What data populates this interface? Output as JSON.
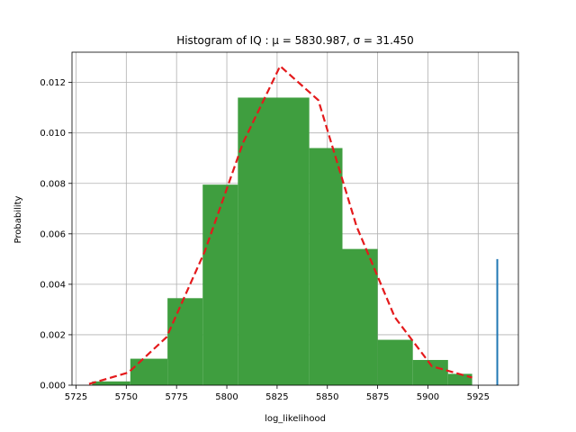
{
  "chart_data": {
    "type": "bar",
    "title": "Histogram of IQ :  μ = 5830.987,  σ = 31.450",
    "xlabel": "log_likelihood",
    "ylabel": "Probability",
    "xlim": [
      5723,
      5945
    ],
    "ylim": [
      0,
      0.0132
    ],
    "xticks": [
      5725,
      5750,
      5775,
      5800,
      5825,
      5850,
      5875,
      5900,
      5925
    ],
    "yticks": [
      0.0,
      0.002,
      0.004,
      0.006,
      0.008,
      0.01,
      0.012
    ],
    "xtick_labels": [
      "5725",
      "5750",
      "5775",
      "5800",
      "5825",
      "5850",
      "5875",
      "5900",
      "5925"
    ],
    "ytick_labels": [
      "0.000",
      "0.002",
      "0.004",
      "0.006",
      "0.008",
      "0.010",
      "0.012"
    ],
    "grid": true,
    "bins": [
      {
        "left": 5733.0,
        "right": 5752.0,
        "value": 0.00015
      },
      {
        "left": 5752.0,
        "right": 5770.5,
        "value": 0.00105
      },
      {
        "left": 5770.5,
        "right": 5788.0,
        "value": 0.00345
      },
      {
        "left": 5788.0,
        "right": 5805.5,
        "value": 0.00795
      },
      {
        "left": 5805.5,
        "right": 5841.0,
        "value": 0.0114
      },
      {
        "left": 5841.0,
        "right": 5857.5,
        "value": 0.0094
      },
      {
        "left": 5857.5,
        "right": 5875.0,
        "value": 0.0054
      },
      {
        "left": 5875.0,
        "right": 5892.5,
        "value": 0.0018
      },
      {
        "left": 5892.5,
        "right": 5910.0,
        "value": 0.001
      },
      {
        "left": 5910.0,
        "right": 5922.0,
        "value": 0.00045
      }
    ],
    "fit_line": {
      "x": [
        5731.5,
        5751.0,
        5770.0,
        5789.0,
        5808.0,
        5826.5,
        5845.5,
        5864.5,
        5883.5,
        5902.0,
        5922.0
      ],
      "y": [
        5e-05,
        0.0005,
        0.0019,
        0.0053,
        0.0096,
        0.01265,
        0.0113,
        0.0063,
        0.0027,
        0.00075,
        0.0003
      ]
    },
    "marker_line": {
      "x": 5934.5,
      "y0": 0,
      "y1": 0.005
    },
    "colors": {
      "bars": "#3f9e3f",
      "fit_line": "#e41a1c",
      "marker_line": "#1f77b4",
      "grid": "#b0b0b0",
      "axes": "#000000"
    }
  }
}
